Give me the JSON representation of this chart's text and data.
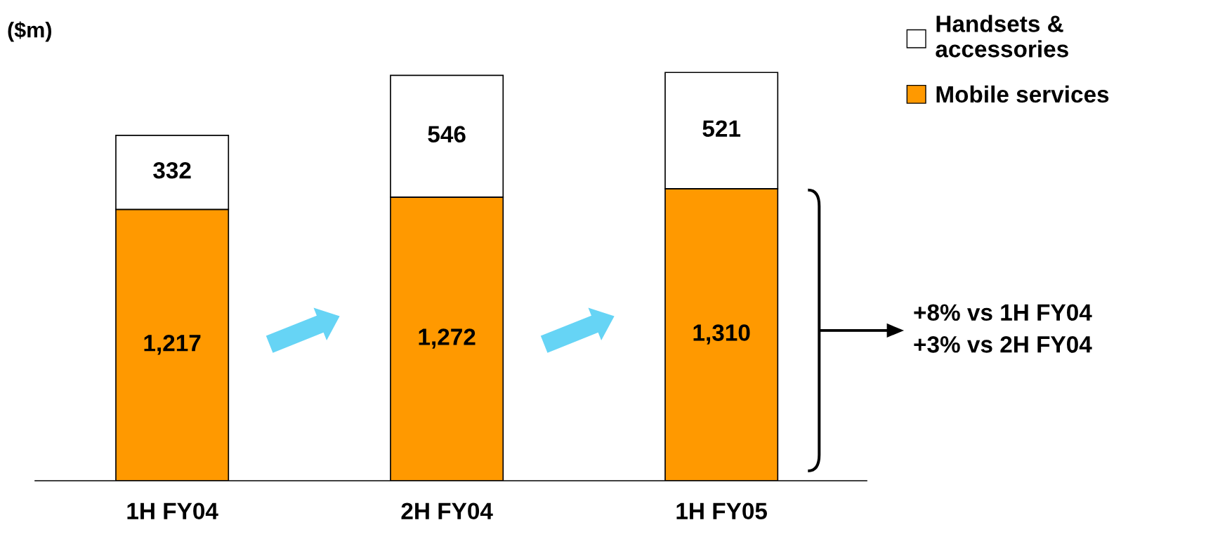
{
  "chart_data": {
    "type": "bar",
    "stacked": true,
    "ylabel": "($m)",
    "categories": [
      "1H FY04",
      "2H FY04",
      "1H FY05"
    ],
    "series": [
      {
        "name": "Mobile services",
        "color": "#ff9900",
        "values": [
          1217,
          1272,
          1310
        ],
        "value_labels": [
          "1,217",
          "1,272",
          "1,310"
        ]
      },
      {
        "name": "Handsets &\naccessories",
        "color": "#ffffff",
        "values": [
          332,
          546,
          521
        ],
        "value_labels": [
          "332",
          "546",
          "521"
        ]
      }
    ],
    "annotations": [
      "+8% vs 1H FY04\n+3% vs 2H FY04"
    ],
    "legend": "top right",
    "grid": false
  }
}
